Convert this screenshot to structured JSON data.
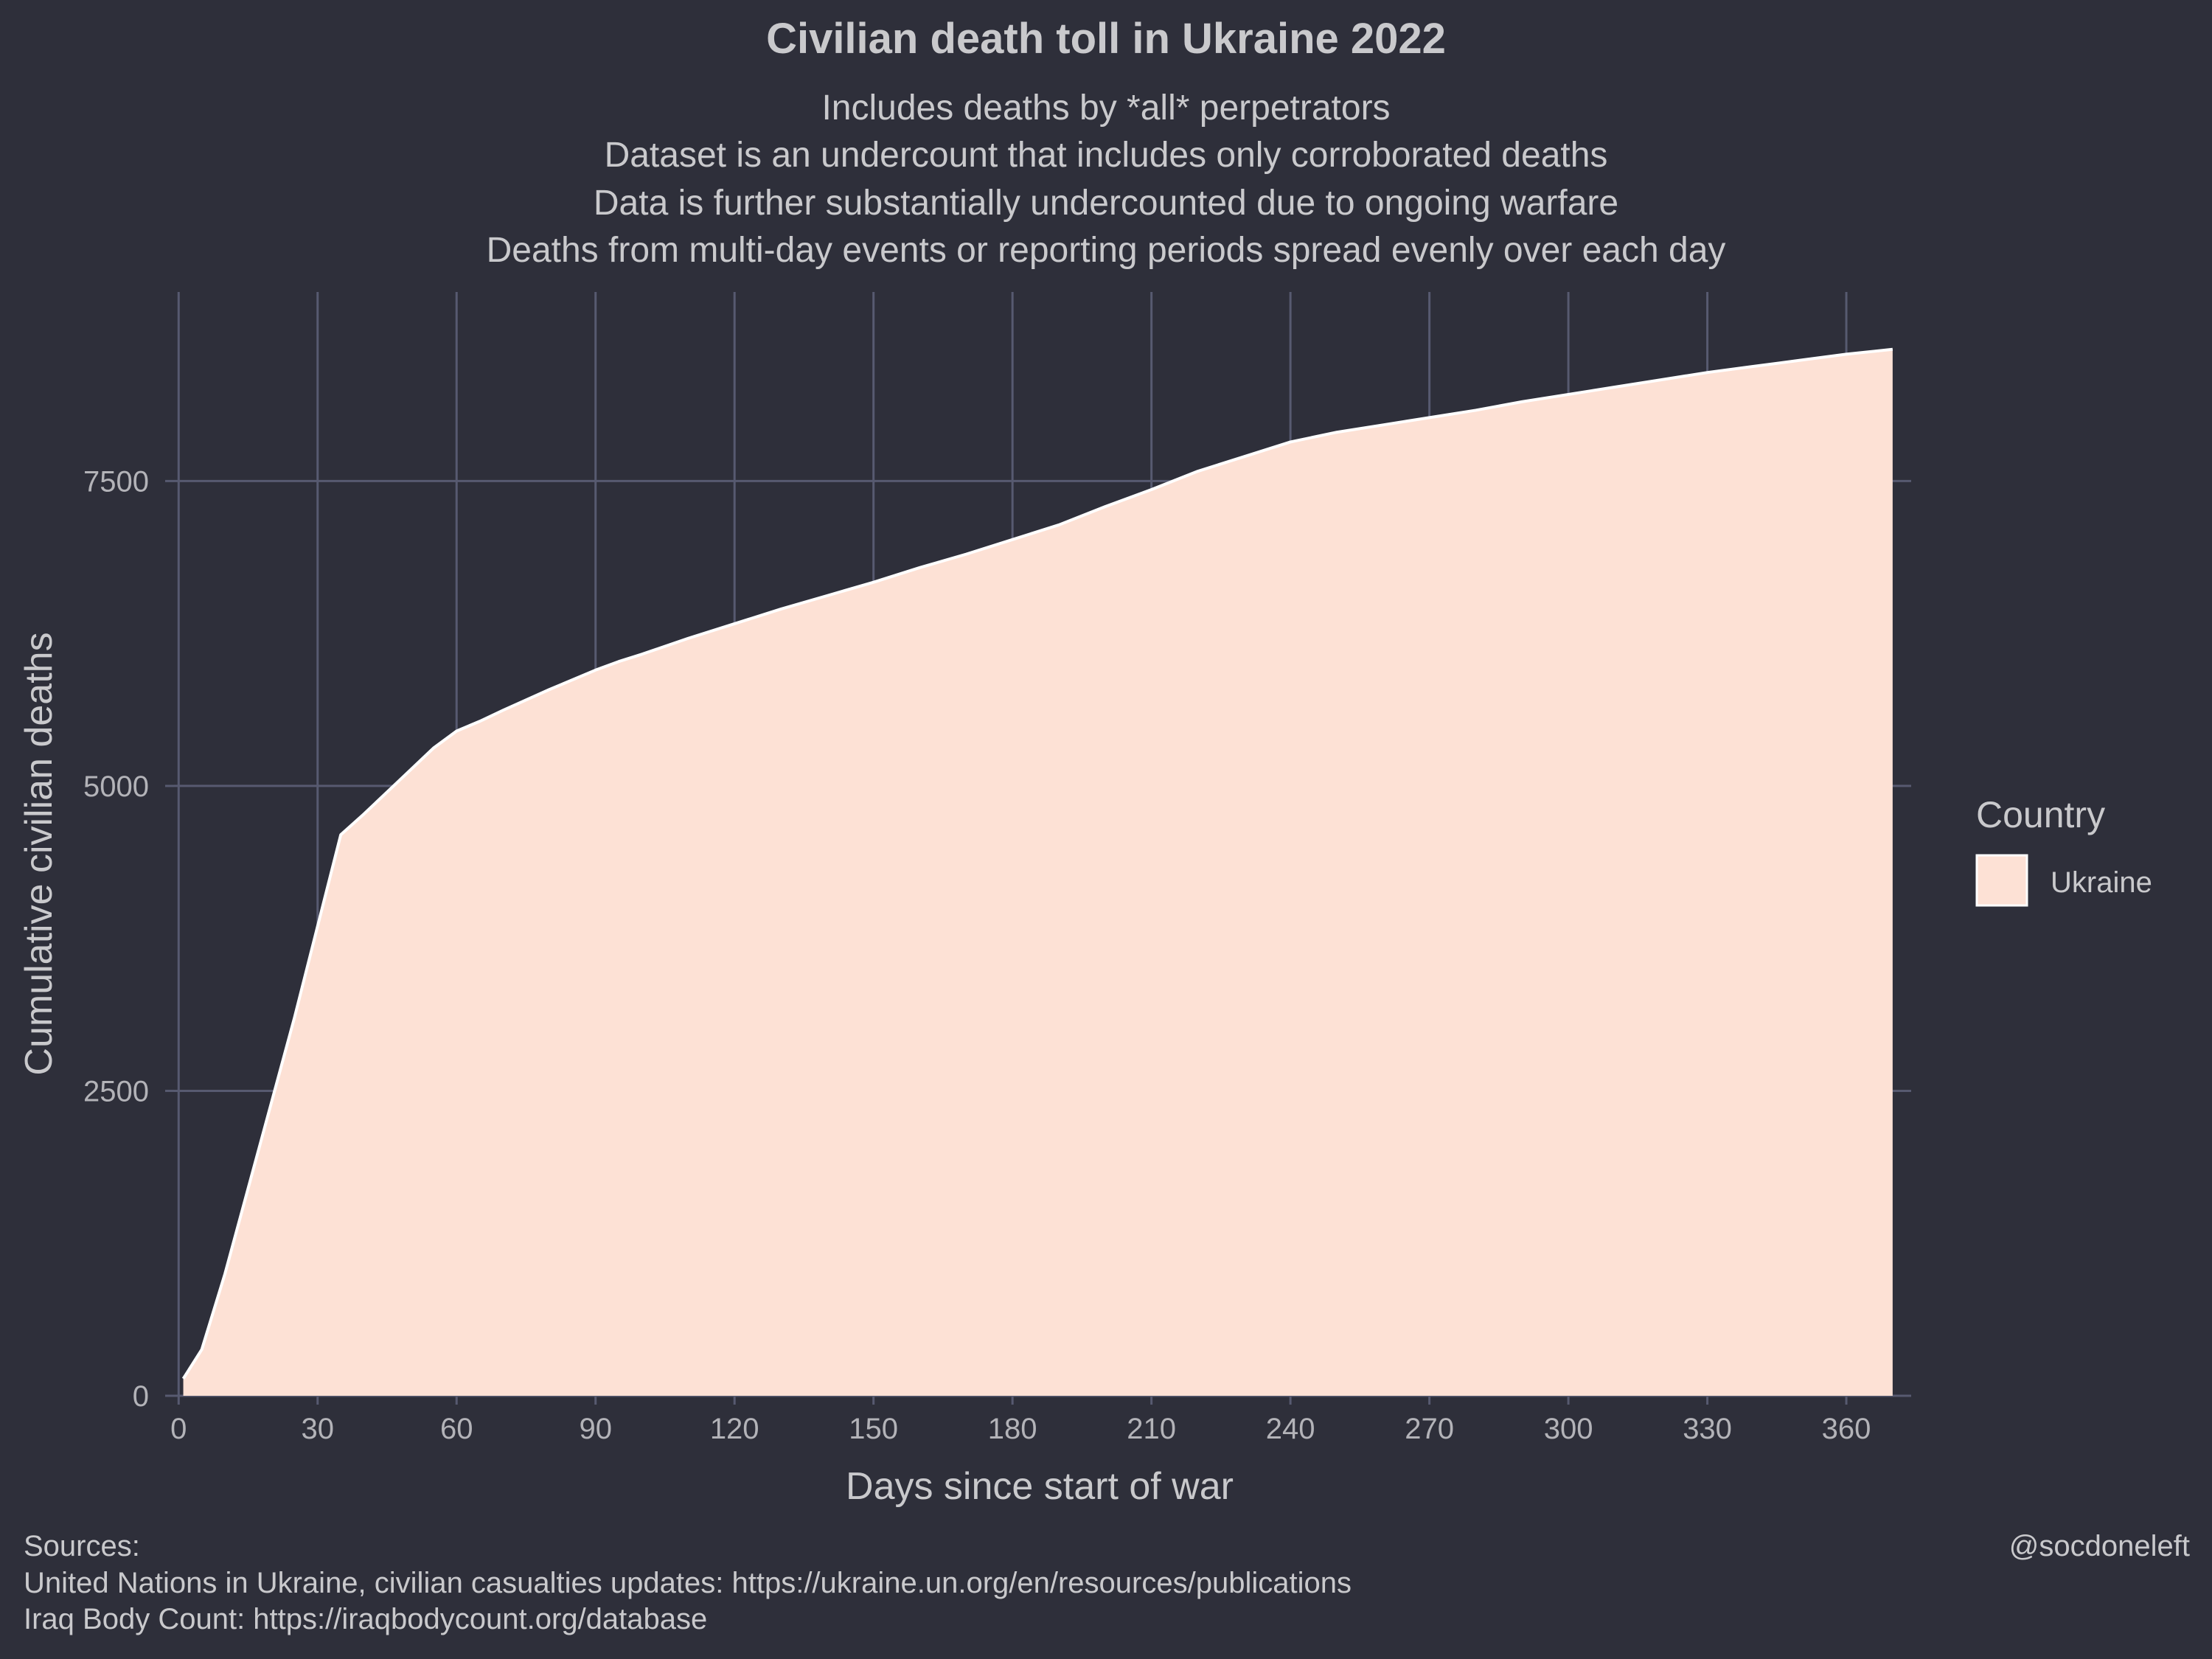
{
  "chart_data": {
    "type": "area",
    "title": "Civilian death toll in Ukraine 2022",
    "subtitle": [
      "Includes deaths by *all* perpetrators",
      "Dataset is an undercount that includes only corroborated deaths",
      "Data is further substantially undercounted due to ongoing warfare",
      "Deaths from multi-day events or reporting periods spread evenly over each day"
    ],
    "xlabel": "Days since start of war",
    "ylabel": "Cumulative civilian deaths",
    "xlim": [
      -1,
      374
    ],
    "ylim": [
      0,
      9050
    ],
    "x_ticks": [
      0,
      30,
      60,
      90,
      120,
      150,
      180,
      210,
      240,
      270,
      300,
      330,
      360
    ],
    "y_ticks": [
      0,
      2500,
      5000,
      7500
    ],
    "grid": true,
    "legend": {
      "title": "Country",
      "position": "right",
      "entries": [
        "Ukraine"
      ]
    },
    "series": [
      {
        "name": "Ukraine",
        "color": "#fde1d5",
        "x": [
          1,
          5,
          10,
          15,
          20,
          25,
          30,
          35,
          40,
          45,
          50,
          55,
          60,
          65,
          70,
          80,
          90,
          95,
          100,
          110,
          120,
          130,
          140,
          150,
          160,
          170,
          180,
          190,
          200,
          210,
          220,
          230,
          240,
          250,
          260,
          270,
          280,
          290,
          300,
          310,
          320,
          330,
          340,
          350,
          360,
          370
        ],
        "y": [
          140,
          380,
          1000,
          1700,
          2400,
          3100,
          3850,
          4600,
          4770,
          4950,
          5130,
          5310,
          5450,
          5530,
          5620,
          5790,
          5950,
          6020,
          6080,
          6210,
          6330,
          6450,
          6560,
          6670,
          6790,
          6900,
          7020,
          7140,
          7290,
          7430,
          7580,
          7700,
          7820,
          7900,
          7960,
          8020,
          8080,
          8150,
          8210,
          8270,
          8330,
          8390,
          8440,
          8490,
          8540,
          8580
        ]
      }
    ]
  },
  "caption": {
    "sources": [
      "Sources:",
      "United Nations in Ukraine, civilian casualties updates: https://ukraine.un.org/en/resources/publications",
      "Iraq Body Count: https://iraqbodycount.org/database"
    ],
    "credit": "@socdoneleft"
  },
  "colors": {
    "background": "#2e2f3a",
    "grid": "#575a70",
    "text": "#c9c9cc",
    "area_fill": "#fde1d5",
    "area_outline": "#ffffff"
  }
}
